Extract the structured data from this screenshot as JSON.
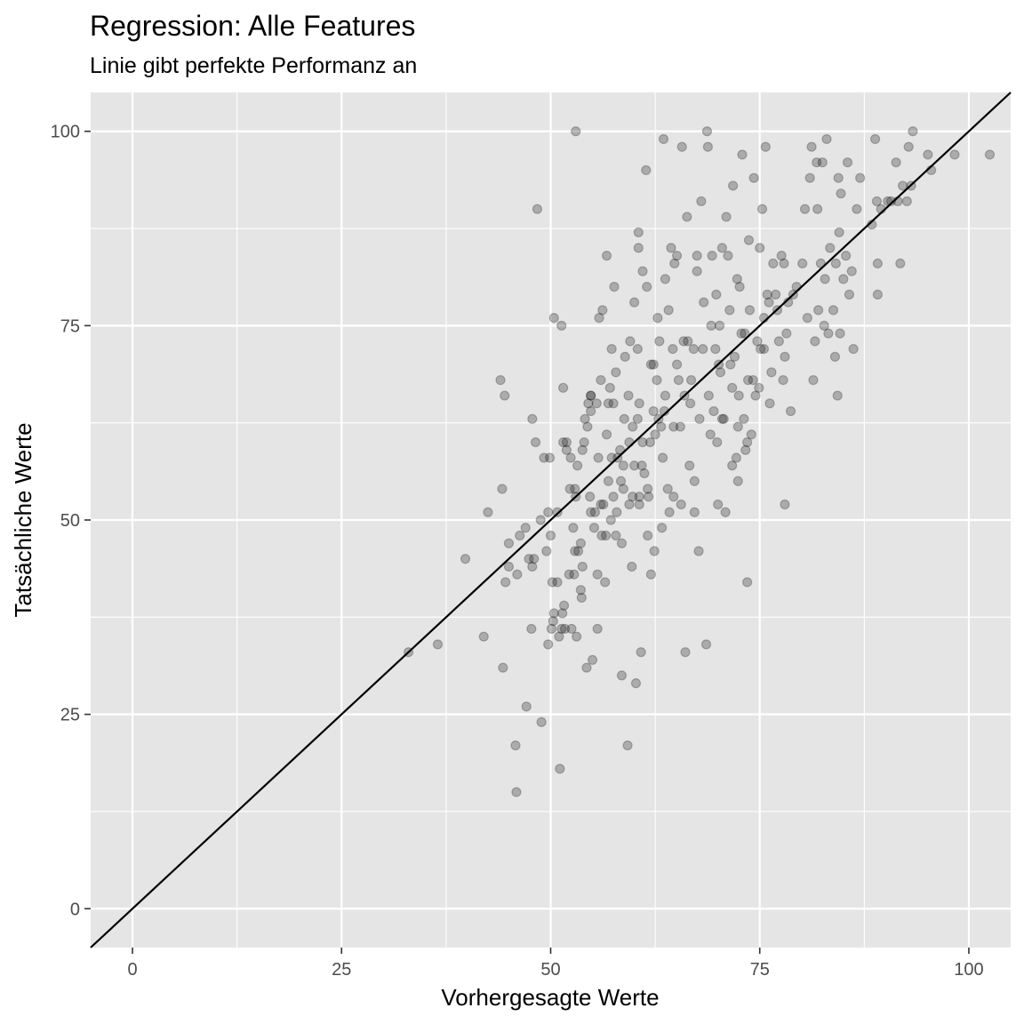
{
  "chart_data": {
    "type": "scatter",
    "title": "Regression: Alle Features",
    "subtitle": "Linie gibt perfekte Performanz an",
    "xlabel": "Vorhergesagte Werte",
    "ylabel": "Tatsächliche Werte",
    "xlim": [
      -5,
      105
    ],
    "ylim": [
      -5,
      105
    ],
    "x_ticks": [
      "0",
      "25",
      "50",
      "75",
      "100"
    ],
    "y_ticks": [
      "0",
      "25",
      "50",
      "75",
      "100"
    ],
    "x_tick_values": [
      0,
      25,
      50,
      75,
      100
    ],
    "y_tick_values": [
      0,
      25,
      50,
      75,
      100
    ],
    "grid": true,
    "reference_line": {
      "slope": 1,
      "intercept": 0
    },
    "colors": {
      "panel": "#e5e5e5",
      "grid": "#ffffff",
      "points": "#000000",
      "line": "#000000"
    },
    "point_opacity": 0.25,
    "points": [
      [
        33,
        33
      ],
      [
        36.5,
        34
      ],
      [
        39.8,
        45
      ],
      [
        42,
        35
      ],
      [
        42.5,
        51
      ],
      [
        44,
        68
      ],
      [
        44.2,
        54
      ],
      [
        44.3,
        31
      ],
      [
        44.5,
        66
      ],
      [
        44.6,
        42
      ],
      [
        45,
        44
      ],
      [
        45,
        47
      ],
      [
        45.8,
        21
      ],
      [
        45.9,
        15
      ],
      [
        46,
        43
      ],
      [
        46.3,
        48
      ],
      [
        47,
        49
      ],
      [
        47.1,
        26
      ],
      [
        47.4,
        45
      ],
      [
        47.7,
        36
      ],
      [
        47.8,
        63
      ],
      [
        47.8,
        44
      ],
      [
        48,
        45
      ],
      [
        48.2,
        60
      ],
      [
        48.4,
        90
      ],
      [
        48.9,
        24
      ],
      [
        48.8,
        50
      ],
      [
        49.2,
        58
      ],
      [
        49.5,
        46
      ],
      [
        49.7,
        51
      ],
      [
        49.7,
        34
      ],
      [
        49.9,
        58
      ],
      [
        50,
        48
      ],
      [
        50.1,
        36
      ],
      [
        50.2,
        42
      ],
      [
        50.3,
        37
      ],
      [
        50.4,
        38
      ],
      [
        50.4,
        76
      ],
      [
        50.8,
        51
      ],
      [
        50.8,
        42
      ],
      [
        51,
        35
      ],
      [
        51.1,
        18
      ],
      [
        51.3,
        36
      ],
      [
        51.3,
        75
      ],
      [
        51.4,
        38
      ],
      [
        51.5,
        60
      ],
      [
        51.5,
        67
      ],
      [
        51.6,
        39
      ],
      [
        51.7,
        36
      ],
      [
        51.9,
        59
      ],
      [
        51.9,
        60
      ],
      [
        52.2,
        43
      ],
      [
        52.3,
        54
      ],
      [
        52.4,
        58
      ],
      [
        52.5,
        36
      ],
      [
        52.7,
        49
      ],
      [
        52.8,
        43
      ],
      [
        52.9,
        46
      ],
      [
        52.9,
        54
      ],
      [
        53,
        100
      ],
      [
        53,
        53
      ],
      [
        53.1,
        35
      ],
      [
        53.2,
        57
      ],
      [
        53.3,
        46
      ],
      [
        53.6,
        47
      ],
      [
        53.6,
        41
      ],
      [
        53.7,
        40
      ],
      [
        53.8,
        44
      ],
      [
        53.8,
        59
      ],
      [
        54,
        60
      ],
      [
        54.1,
        63
      ],
      [
        54.3,
        31
      ],
      [
        54.4,
        62
      ],
      [
        54.5,
        65
      ],
      [
        54.7,
        53
      ],
      [
        54.8,
        64
      ],
      [
        54.8,
        66
      ],
      [
        54.8,
        51
      ],
      [
        54.8,
        66
      ],
      [
        55,
        32
      ],
      [
        55.2,
        49
      ],
      [
        55.3,
        51
      ],
      [
        55.5,
        65
      ],
      [
        55.6,
        43
      ],
      [
        55.6,
        36
      ],
      [
        55.7,
        58
      ],
      [
        55.8,
        76
      ],
      [
        56,
        68
      ],
      [
        56,
        52
      ],
      [
        56.1,
        48
      ],
      [
        56.2,
        77
      ],
      [
        56.3,
        52
      ],
      [
        56.5,
        42
      ],
      [
        56.6,
        48
      ],
      [
        56.7,
        84
      ],
      [
        56.7,
        61
      ],
      [
        56.9,
        65
      ],
      [
        56.9,
        55
      ],
      [
        57.1,
        67
      ],
      [
        57.2,
        50
      ],
      [
        57.3,
        58
      ],
      [
        57.3,
        72
      ],
      [
        57.5,
        53
      ],
      [
        57.5,
        65
      ],
      [
        57.6,
        80
      ],
      [
        57.8,
        69
      ],
      [
        57.8,
        48
      ],
      [
        57.9,
        51
      ],
      [
        58,
        58
      ],
      [
        58.3,
        59
      ],
      [
        58.4,
        55
      ],
      [
        58.5,
        47
      ],
      [
        58.5,
        30
      ],
      [
        58.7,
        57
      ],
      [
        58.7,
        54
      ],
      [
        58.8,
        63
      ],
      [
        58.9,
        71
      ],
      [
        59.2,
        21
      ],
      [
        59.3,
        66
      ],
      [
        59.4,
        52
      ],
      [
        59.4,
        60
      ],
      [
        59.5,
        73
      ],
      [
        59.7,
        44
      ],
      [
        59.8,
        53
      ],
      [
        59.8,
        62
      ],
      [
        60,
        57
      ],
      [
        60,
        78
      ],
      [
        60.2,
        29
      ],
      [
        60.4,
        72
      ],
      [
        60.4,
        63
      ],
      [
        60.5,
        87
      ],
      [
        60.5,
        85
      ],
      [
        60.6,
        53
      ],
      [
        60.6,
        65
      ],
      [
        60.6,
        52
      ],
      [
        60.8,
        33
      ],
      [
        60.9,
        57
      ],
      [
        61,
        82
      ],
      [
        61,
        60
      ],
      [
        61.2,
        56
      ],
      [
        61.4,
        95
      ],
      [
        61.5,
        80
      ],
      [
        61.6,
        54
      ],
      [
        61.6,
        48
      ],
      [
        61.7,
        53
      ],
      [
        61.9,
        60
      ],
      [
        62,
        70
      ],
      [
        62,
        43
      ],
      [
        62.3,
        70
      ],
      [
        62.3,
        64
      ],
      [
        62.4,
        46
      ],
      [
        62.5,
        61
      ],
      [
        62.7,
        68
      ],
      [
        62.8,
        76
      ],
      [
        62.9,
        63
      ],
      [
        63,
        73
      ],
      [
        63.2,
        62
      ],
      [
        63.3,
        49
      ],
      [
        63.4,
        58
      ],
      [
        63.5,
        99
      ],
      [
        63.6,
        64
      ],
      [
        63.7,
        81
      ],
      [
        63.7,
        66
      ],
      [
        64,
        54
      ],
      [
        64.1,
        77
      ],
      [
        64.2,
        51
      ],
      [
        64.4,
        85
      ],
      [
        64.6,
        72
      ],
      [
        64.7,
        62
      ],
      [
        64.7,
        53
      ],
      [
        64.8,
        83
      ],
      [
        65.1,
        84
      ],
      [
        65.1,
        70
      ],
      [
        65.3,
        68
      ],
      [
        65.5,
        62
      ],
      [
        65.6,
        52
      ],
      [
        65.7,
        98
      ],
      [
        65.9,
        73
      ],
      [
        66,
        66
      ],
      [
        66.1,
        33
      ],
      [
        66.3,
        89
      ],
      [
        66.4,
        73
      ],
      [
        66.6,
        57
      ],
      [
        66.7,
        65
      ],
      [
        66.8,
        68
      ],
      [
        67.1,
        72
      ],
      [
        67.2,
        51
      ],
      [
        67.2,
        55
      ],
      [
        67.5,
        82
      ],
      [
        67.5,
        84
      ],
      [
        67.7,
        46
      ],
      [
        67.8,
        63
      ],
      [
        68,
        91
      ],
      [
        68.2,
        72
      ],
      [
        68.3,
        78
      ],
      [
        68.6,
        34
      ],
      [
        68.7,
        100
      ],
      [
        68.8,
        98
      ],
      [
        68.9,
        66
      ],
      [
        69.1,
        61
      ],
      [
        69.2,
        75
      ],
      [
        69.3,
        84
      ],
      [
        69.5,
        64
      ],
      [
        69.7,
        72
      ],
      [
        69.8,
        79
      ],
      [
        69.9,
        60
      ],
      [
        70,
        52
      ],
      [
        70.1,
        70
      ],
      [
        70.2,
        75
      ],
      [
        70.3,
        69
      ],
      [
        70.5,
        85
      ],
      [
        70.5,
        63
      ],
      [
        70.7,
        63
      ],
      [
        70.9,
        51
      ],
      [
        71,
        89
      ],
      [
        71.2,
        84
      ],
      [
        71.4,
        77
      ],
      [
        71.5,
        70
      ],
      [
        71.7,
        67
      ],
      [
        71.7,
        57
      ],
      [
        71.8,
        93
      ],
      [
        72,
        71
      ],
      [
        72.2,
        58
      ],
      [
        72.3,
        81
      ],
      [
        72.4,
        55
      ],
      [
        72.4,
        62
      ],
      [
        72.5,
        66
      ],
      [
        72.6,
        80
      ],
      [
        72.8,
        74
      ],
      [
        72.9,
        97
      ],
      [
        73.1,
        63
      ],
      [
        73.2,
        74
      ],
      [
        73.3,
        59
      ],
      [
        73.5,
        60
      ],
      [
        73.5,
        42
      ],
      [
        73.6,
        68
      ],
      [
        73.7,
        86
      ],
      [
        73.8,
        77
      ],
      [
        74,
        61
      ],
      [
        74.2,
        68
      ],
      [
        74.3,
        94
      ],
      [
        74.5,
        66
      ],
      [
        74.7,
        73
      ],
      [
        74.9,
        67
      ],
      [
        75,
        85
      ],
      [
        75.1,
        72
      ],
      [
        75.3,
        90
      ],
      [
        75.5,
        76
      ],
      [
        75.5,
        72
      ],
      [
        75.7,
        98
      ],
      [
        75.9,
        79
      ],
      [
        76.1,
        78
      ],
      [
        76.2,
        65
      ],
      [
        76.4,
        69
      ],
      [
        76.6,
        83
      ],
      [
        76.9,
        79
      ],
      [
        77.1,
        77
      ],
      [
        77.3,
        73
      ],
      [
        77.6,
        84
      ],
      [
        77.8,
        68
      ],
      [
        77.9,
        83
      ],
      [
        78,
        71
      ],
      [
        78,
        52
      ],
      [
        78.2,
        74
      ],
      [
        78.4,
        78
      ],
      [
        78.7,
        64
      ],
      [
        79,
        79
      ],
      [
        79.4,
        80
      ],
      [
        80.1,
        83
      ],
      [
        80.4,
        90
      ],
      [
        80.7,
        76
      ],
      [
        81,
        94
      ],
      [
        81.2,
        98
      ],
      [
        81.4,
        68
      ],
      [
        81.6,
        73
      ],
      [
        81.8,
        96
      ],
      [
        81.9,
        90
      ],
      [
        82,
        77
      ],
      [
        82.3,
        83
      ],
      [
        82.5,
        96
      ],
      [
        82.7,
        75
      ],
      [
        82.8,
        81
      ],
      [
        83,
        99
      ],
      [
        83.2,
        74
      ],
      [
        83.4,
        85
      ],
      [
        83.8,
        77
      ],
      [
        84,
        71
      ],
      [
        84.1,
        83
      ],
      [
        84.3,
        66
      ],
      [
        84.4,
        94
      ],
      [
        84.5,
        87
      ],
      [
        84.6,
        74
      ],
      [
        84.7,
        92
      ],
      [
        85,
        81
      ],
      [
        85.3,
        84
      ],
      [
        85.5,
        96
      ],
      [
        85.7,
        79
      ],
      [
        86,
        82
      ],
      [
        86.2,
        72
      ],
      [
        86.6,
        90
      ],
      [
        87,
        94
      ],
      [
        88.4,
        88
      ],
      [
        88.8,
        99
      ],
      [
        89,
        91
      ],
      [
        89.1,
        79
      ],
      [
        89.1,
        83
      ],
      [
        89.5,
        90
      ],
      [
        90.3,
        91
      ],
      [
        90.7,
        91
      ],
      [
        91.3,
        96
      ],
      [
        91.5,
        91
      ],
      [
        91.8,
        83
      ],
      [
        92.1,
        93
      ],
      [
        92.6,
        91
      ],
      [
        92.8,
        98
      ],
      [
        93.1,
        93
      ],
      [
        93.3,
        100
      ],
      [
        95.1,
        97
      ],
      [
        95.5,
        95
      ],
      [
        98.3,
        97
      ],
      [
        102.5,
        97
      ]
    ]
  }
}
